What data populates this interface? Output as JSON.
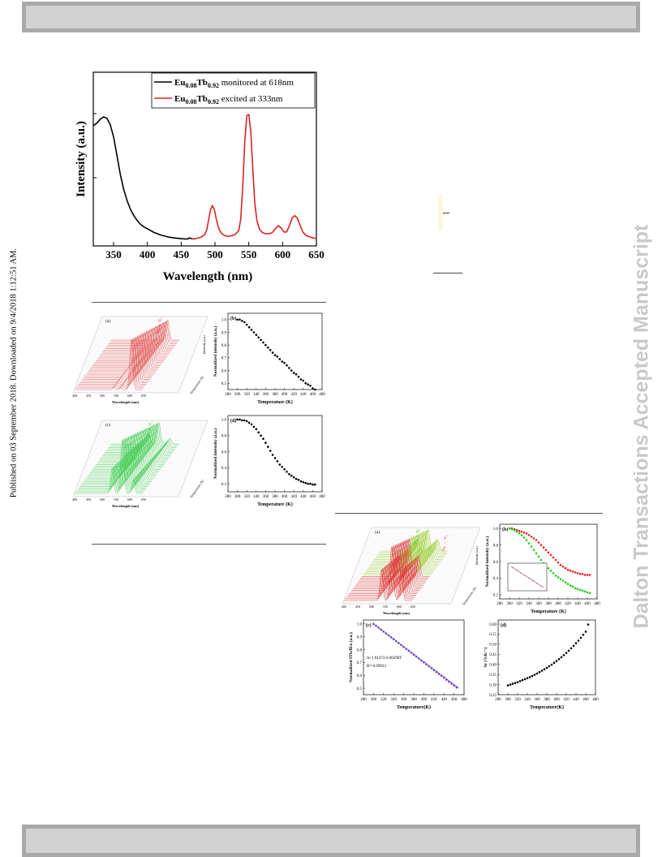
{
  "side_text": {
    "left": "Published on 03 September 2018. Downloaded on 9/4/2018 1:12:51 AM.",
    "right": "Dalton Transactions Accepted Manuscript"
  },
  "figure_main": {
    "y_axis_label": "Intensity (a.u.)",
    "x_axis_label": "Wavelength (nm)",
    "x_ticks": [
      "350",
      "400",
      "450",
      "500",
      "550",
      "600",
      "650"
    ],
    "legend": [
      {
        "label_main": "Eu",
        "sub1": "0.08",
        "mid": "Tb",
        "sub2": "0.92",
        "tail": " monitored at 618nm"
      },
      {
        "label_main": "Eu",
        "sub1": "0.08",
        "mid": "Tb",
        "sub2": "0.92",
        "tail": " excited at 333nm"
      }
    ]
  },
  "figure_left": {
    "panel_a": {
      "tag": "(a)",
      "annotation": "⁵D₀ → ⁷F₂",
      "xlabel": "Wavelength (nm)",
      "zlabel": "Temperature (K)",
      "ylabel": "Intensity (a.u.)",
      "x_ticks": [
        "400",
        "450",
        "500",
        "550",
        "600",
        "650"
      ]
    },
    "panel_b": {
      "tag": "(b)",
      "xlabel": "Temperature (K)",
      "ylabel": "Normalized intensity (a.u.)",
      "x_ticks": [
        "280",
        "300",
        "320",
        "340",
        "360",
        "380",
        "400",
        "420",
        "440",
        "460",
        "480"
      ],
      "y_ticks": [
        "1.0",
        "0.9",
        "0.8",
        "0.7",
        "0.6",
        "0.5"
      ]
    },
    "panel_c": {
      "tag": "(c)",
      "annotation": "⁵D₄ → ⁷F₅",
      "xlabel": "Wavelength (nm)",
      "zlabel": "Temperature (K)",
      "x_ticks": [
        "400",
        "450",
        "500",
        "550",
        "600",
        "650"
      ]
    },
    "panel_d": {
      "tag": "(d)",
      "xlabel": "Temperature (K)",
      "ylabel": "Normalized intensity (a.u.)",
      "x_ticks": [
        "280",
        "300",
        "320",
        "340",
        "360",
        "380",
        "400",
        "420",
        "440",
        "460",
        "480"
      ],
      "y_ticks": [
        "1.0",
        "0.8",
        "0.6",
        "0.4",
        "0.2"
      ]
    }
  },
  "figure_right": {
    "panel_a": {
      "tag": "(a)",
      "annotation_tb": "⁵D₄ → ⁷F₅",
      "annotation_eu": "⁵D₀ → ⁷F₂",
      "xlabel": "Wavelength (nm)",
      "zlabel": "Temperature (K)",
      "ylabel": "Intensity (a.u.)",
      "x_ticks": [
        "400",
        "450",
        "500",
        "550",
        "600",
        "650"
      ]
    },
    "panel_b": {
      "tag": "(b)",
      "xlabel": "Temperature (K)",
      "ylabel": "Normalized intensity (a.u.)",
      "x_ticks": [
        "280",
        "300",
        "320",
        "340",
        "360",
        "380",
        "400",
        "420",
        "440",
        "460",
        "480"
      ],
      "y_ticks": [
        "1.0",
        "0.8",
        "0.6",
        "0.4",
        "0.2"
      ]
    },
    "panel_c": {
      "tag": "(c)",
      "xlabel": "Temperature(K)",
      "ylabel": "Normalized ITb/IEu (a.u.)",
      "fit": "Δ=1.91473-0.00299T",
      "r2": "R²=0.99933",
      "x_ticks": [
        "280",
        "300",
        "320",
        "340",
        "360",
        "380",
        "400",
        "420",
        "440",
        "460",
        "480"
      ],
      "y_ticks": [
        "1.0",
        "0.9",
        "0.8",
        "0.7",
        "0.6",
        "0.5"
      ]
    },
    "panel_d": {
      "tag": "(d)",
      "xlabel": "Temperature(K)",
      "ylabel": "Sr (%K⁻¹)",
      "x_ticks": [
        "280",
        "300",
        "320",
        "340",
        "360",
        "380",
        "400",
        "420",
        "440",
        "460",
        "480"
      ],
      "y_ticks": [
        "0.60",
        "0.55",
        "0.50",
        "0.45",
        "0.40",
        "0.35",
        "0.30",
        "0.25"
      ]
    }
  },
  "chart_data": [
    {
      "type": "line",
      "xlabel": "Wavelength (nm)",
      "ylabel": "Intensity (a.u.)",
      "xlim": [
        320,
        650
      ],
      "series": [
        {
          "name": "Eu0.08Tb0.92 monitored at 618nm",
          "color": "#000000",
          "x": [
            320,
            325,
            330,
            335,
            340,
            345,
            350,
            355,
            360,
            365,
            370,
            375,
            380,
            385,
            390,
            395,
            400,
            410,
            420,
            430,
            440,
            450,
            455,
            460,
            462,
            466,
            470
          ],
          "y": [
            0.91,
            0.93,
            0.96,
            0.98,
            0.97,
            0.92,
            0.82,
            0.67,
            0.52,
            0.4,
            0.31,
            0.24,
            0.19,
            0.15,
            0.12,
            0.1,
            0.085,
            0.055,
            0.035,
            0.02,
            0.012,
            0.006,
            0.004,
            0.004,
            0.012,
            0.005,
            0.004
          ]
        },
        {
          "name": "Eu0.08Tb0.92 excited at 333nm",
          "color": "#dd2222",
          "x": [
            465,
            470,
            475,
            480,
            485,
            488,
            490,
            493,
            496,
            499,
            502,
            506,
            510,
            515,
            520,
            525,
            530,
            535,
            538,
            541,
            544,
            547,
            550,
            553,
            556,
            559,
            562,
            566,
            570,
            575,
            580,
            585,
            590,
            594,
            598,
            602,
            606,
            610,
            614,
            618,
            622,
            626,
            630,
            635,
            640,
            645,
            650
          ],
          "y": [
            0.003,
            0.006,
            0.01,
            0.02,
            0.04,
            0.08,
            0.14,
            0.23,
            0.27,
            0.24,
            0.16,
            0.08,
            0.045,
            0.03,
            0.025,
            0.03,
            0.04,
            0.07,
            0.16,
            0.42,
            0.78,
            0.99,
            1.0,
            0.86,
            0.55,
            0.28,
            0.15,
            0.08,
            0.055,
            0.045,
            0.045,
            0.055,
            0.09,
            0.11,
            0.09,
            0.06,
            0.06,
            0.11,
            0.17,
            0.19,
            0.17,
            0.11,
            0.06,
            0.03,
            0.02,
            0.012,
            0.008
          ]
        }
      ]
    },
    {
      "type": "scatter",
      "title": "(b)",
      "xlabel": "Temperature (K)",
      "ylabel": "Normalized intensity (a.u.)",
      "xlim": [
        280,
        480
      ],
      "ylim": [
        0.45,
        1.05
      ],
      "series": [
        {
          "name": "",
          "color": "#000000",
          "start": 300,
          "step": 5,
          "values": [
            1.0,
            1.0,
            0.99,
            0.98,
            0.96,
            0.94,
            0.92,
            0.9,
            0.88,
            0.86,
            0.84,
            0.82,
            0.8,
            0.78,
            0.76,
            0.74,
            0.72,
            0.71,
            0.69,
            0.67,
            0.66,
            0.64,
            0.62,
            0.6,
            0.58,
            0.57,
            0.55,
            0.53,
            0.52,
            0.5,
            0.49,
            0.48,
            0.46,
            0.45
          ]
        }
      ]
    },
    {
      "type": "scatter",
      "title": "(d)",
      "xlabel": "Temperature (K)",
      "ylabel": "Normalized intensity (a.u.)",
      "xlim": [
        280,
        480
      ],
      "ylim": [
        0.1,
        1.05
      ],
      "series": [
        {
          "name": "",
          "color": "#000000",
          "start": 300,
          "step": 5,
          "values": [
            1.0,
            1.0,
            0.99,
            0.99,
            0.98,
            0.96,
            0.94,
            0.91,
            0.88,
            0.84,
            0.8,
            0.76,
            0.71,
            0.66,
            0.61,
            0.56,
            0.52,
            0.48,
            0.44,
            0.41,
            0.38,
            0.35,
            0.32,
            0.3,
            0.28,
            0.26,
            0.25,
            0.23,
            0.22,
            0.21,
            0.2,
            0.2,
            0.19,
            0.19
          ]
        }
      ]
    },
    {
      "type": "scatter",
      "title": "(b)",
      "xlabel": "Temperature (K)",
      "ylabel": "Normalized intensity (a.u.)",
      "xlim": [
        280,
        480
      ],
      "ylim": [
        0.15,
        1.05
      ],
      "series": [
        {
          "name": "",
          "color": "#ee2222",
          "start": 300,
          "step": 5,
          "values": [
            1.0,
            1.0,
            0.99,
            0.98,
            0.97,
            0.96,
            0.95,
            0.94,
            0.92,
            0.9,
            0.88,
            0.86,
            0.83,
            0.8,
            0.77,
            0.74,
            0.71,
            0.68,
            0.65,
            0.62,
            0.59,
            0.56,
            0.54,
            0.52,
            0.5,
            0.49,
            0.48,
            0.47,
            0.46,
            0.45,
            0.45,
            0.44,
            0.44,
            0.44
          ]
        },
        {
          "name": "",
          "color": "#22cc22",
          "start": 300,
          "step": 5,
          "values": [
            1.0,
            0.99,
            0.98,
            0.96,
            0.94,
            0.92,
            0.89,
            0.86,
            0.82,
            0.78,
            0.74,
            0.7,
            0.66,
            0.62,
            0.58,
            0.55,
            0.52,
            0.49,
            0.46,
            0.43,
            0.41,
            0.39,
            0.37,
            0.35,
            0.33,
            0.31,
            0.3,
            0.28,
            0.27,
            0.26,
            0.25,
            0.24,
            0.23,
            0.22
          ]
        }
      ]
    },
    {
      "type": "scatter",
      "title": "(c)",
      "xlabel": "Temperature(K)",
      "ylabel": "Normalized ITb/IEu (a.u.)",
      "xlim": [
        280,
        480
      ],
      "ylim": [
        0.45,
        1.03
      ],
      "series": [
        {
          "name": "",
          "color": "#9933aa",
          "start": 300,
          "step": 5,
          "values": [
            1.0,
            0.985,
            0.97,
            0.955,
            0.94,
            0.926,
            0.911,
            0.896,
            0.881,
            0.866,
            0.851,
            0.836,
            0.821,
            0.806,
            0.791,
            0.776,
            0.761,
            0.746,
            0.731,
            0.716,
            0.701,
            0.686,
            0.671,
            0.656,
            0.641,
            0.626,
            0.611,
            0.596,
            0.581,
            0.566,
            0.551,
            0.536,
            0.521,
            0.506
          ]
        }
      ]
    },
    {
      "type": "scatter",
      "title": "(d)",
      "xlabel": "Temperature(K)",
      "ylabel": "Sr (%K⁻¹)",
      "xlim": [
        280,
        480
      ],
      "ylim": [
        0.25,
        0.62
      ],
      "series": [
        {
          "name": "",
          "color": "#000000",
          "start": 300,
          "step": 5,
          "values": [
            0.296,
            0.3,
            0.304,
            0.308,
            0.312,
            0.317,
            0.322,
            0.327,
            0.332,
            0.337,
            0.343,
            0.349,
            0.355,
            0.362,
            0.369,
            0.376,
            0.383,
            0.391,
            0.399,
            0.408,
            0.417,
            0.426,
            0.436,
            0.446,
            0.457,
            0.468,
            0.48,
            0.492,
            0.505,
            0.518,
            0.532,
            0.547,
            0.562,
            0.598
          ]
        }
      ]
    }
  ]
}
